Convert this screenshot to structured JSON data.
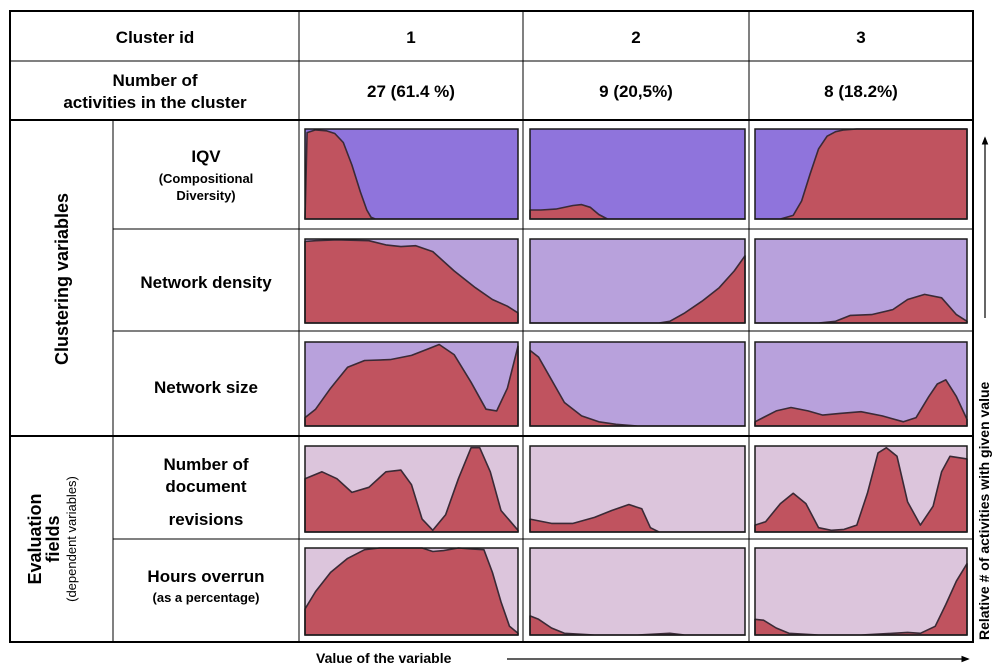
{
  "header": {
    "cluster_id_label": "Cluster id",
    "count_label_line1": "Number of",
    "count_label_line2": "activities in the cluster",
    "clusters": [
      "1",
      "2",
      "3"
    ],
    "counts": [
      "27 (61.4 %)",
      "9 (20,5%)",
      "8 (18.2%)"
    ]
  },
  "groups": {
    "clustering": "Clustering variables",
    "evaluation_line1": "Evaluation",
    "evaluation_line2": "fields",
    "evaluation_note": "(dependent variables)"
  },
  "row_labels": {
    "iqv_title": "IQV",
    "iqv_sub1": "(Compositional",
    "iqv_sub2": "Diversity)",
    "density": "Network density",
    "size": "Network size",
    "revisions_line1": "Number of",
    "revisions_line2": "document",
    "revisions_line3": "revisions",
    "overrun_title": "Hours overrun",
    "overrun_sub": "(as a percentage)"
  },
  "axes": {
    "x_caption": "Value of the variable",
    "y_caption": "Relative # of activities with given value"
  },
  "colors": {
    "fill": "#c0535f",
    "stroke": "#3a2a36",
    "bg_iqv": "#8f74dc",
    "bg_cluster": "#b8a1dc",
    "bg_eval": "#dcc5dc"
  },
  "chart_data": {
    "type": "area",
    "x_range": [
      0,
      1
    ],
    "y_range": [
      0,
      1
    ],
    "columns": [
      "1",
      "2",
      "3"
    ],
    "rows": [
      {
        "variable": "IQV",
        "series": [
          {
            "x": [
              0,
              0.01,
              0.05,
              0.1,
              0.14,
              0.18,
              0.22,
              0.26,
              0.29,
              0.31,
              0.33,
              1
            ],
            "y": [
              0,
              0.96,
              0.99,
              0.98,
              0.95,
              0.85,
              0.6,
              0.3,
              0.1,
              0.02,
              0,
              0
            ]
          },
          {
            "x": [
              0,
              0.05,
              0.12,
              0.2,
              0.24,
              0.28,
              0.32,
              0.36,
              1
            ],
            "y": [
              0.1,
              0.1,
              0.11,
              0.15,
              0.16,
              0.13,
              0.05,
              0,
              0
            ]
          },
          {
            "x": [
              0,
              0.12,
              0.18,
              0.22,
              0.26,
              0.3,
              0.34,
              0.38,
              0.42,
              0.48,
              0.6,
              0.8,
              1
            ],
            "y": [
              0,
              0,
              0.04,
              0.2,
              0.5,
              0.78,
              0.92,
              0.97,
              0.99,
              1,
              1,
              1,
              1
            ]
          }
        ]
      },
      {
        "variable": "Network density",
        "series": [
          {
            "x": [
              0,
              0.05,
              0.15,
              0.3,
              0.38,
              0.45,
              0.52,
              0.6,
              0.7,
              0.8,
              0.88,
              0.95,
              1
            ],
            "y": [
              0.97,
              0.98,
              0.99,
              0.98,
              0.93,
              0.91,
              0.92,
              0.85,
              0.62,
              0.42,
              0.28,
              0.2,
              0.12
            ]
          },
          {
            "x": [
              0,
              0.5,
              0.6,
              0.65,
              0.72,
              0.8,
              0.88,
              0.95,
              1
            ],
            "y": [
              0,
              0,
              0,
              0.02,
              0.12,
              0.26,
              0.42,
              0.62,
              0.8
            ]
          },
          {
            "x": [
              0,
              0.3,
              0.38,
              0.45,
              0.55,
              0.65,
              0.72,
              0.8,
              0.88,
              0.95,
              1
            ],
            "y": [
              0,
              0,
              0.02,
              0.09,
              0.1,
              0.16,
              0.28,
              0.34,
              0.3,
              0.1,
              0.02
            ]
          }
        ]
      },
      {
        "variable": "Network size",
        "series": [
          {
            "x": [
              0,
              0.05,
              0.12,
              0.2,
              0.28,
              0.4,
              0.5,
              0.58,
              0.63,
              0.7,
              0.78,
              0.85,
              0.9,
              0.95,
              1
            ],
            "y": [
              0.1,
              0.2,
              0.45,
              0.7,
              0.78,
              0.79,
              0.84,
              0.92,
              0.97,
              0.85,
              0.52,
              0.2,
              0.18,
              0.45,
              0.95
            ]
          },
          {
            "x": [
              0,
              0.04,
              0.1,
              0.16,
              0.24,
              0.32,
              0.4,
              0.5,
              1
            ],
            "y": [
              0.9,
              0.82,
              0.55,
              0.28,
              0.12,
              0.05,
              0.02,
              0,
              0
            ]
          },
          {
            "x": [
              0,
              0.1,
              0.17,
              0.25,
              0.32,
              0.4,
              0.5,
              0.6,
              0.7,
              0.76,
              0.82,
              0.86,
              0.9,
              0.95,
              1
            ],
            "y": [
              0.05,
              0.18,
              0.22,
              0.18,
              0.13,
              0.15,
              0.17,
              0.12,
              0.05,
              0.1,
              0.35,
              0.5,
              0.55,
              0.35,
              0.08
            ]
          }
        ]
      },
      {
        "variable": "Number of document revisions",
        "series": [
          {
            "x": [
              0,
              0.08,
              0.15,
              0.22,
              0.3,
              0.38,
              0.45,
              0.5,
              0.55,
              0.6,
              0.66,
              0.72,
              0.78,
              0.82,
              0.87,
              0.92,
              1
            ],
            "y": [
              0.62,
              0.7,
              0.62,
              0.46,
              0.52,
              0.7,
              0.72,
              0.55,
              0.15,
              0.02,
              0.2,
              0.62,
              0.98,
              0.98,
              0.7,
              0.25,
              0.02
            ]
          },
          {
            "x": [
              0,
              0.1,
              0.2,
              0.3,
              0.38,
              0.46,
              0.52,
              0.56,
              0.6,
              1
            ],
            "y": [
              0.15,
              0.1,
              0.1,
              0.17,
              0.25,
              0.32,
              0.27,
              0.05,
              0,
              0
            ]
          },
          {
            "x": [
              0,
              0.05,
              0.12,
              0.18,
              0.24,
              0.3,
              0.36,
              0.42,
              0.48,
              0.53,
              0.58,
              0.62,
              0.67,
              0.72,
              0.78,
              0.84,
              0.88,
              0.92,
              1
            ],
            "y": [
              0.08,
              0.12,
              0.33,
              0.45,
              0.33,
              0.05,
              0.02,
              0.03,
              0.08,
              0.45,
              0.92,
              0.98,
              0.88,
              0.35,
              0.08,
              0.3,
              0.7,
              0.88,
              0.85
            ]
          }
        ]
      },
      {
        "variable": "Hours overrun",
        "series": [
          {
            "x": [
              0,
              0.05,
              0.12,
              0.2,
              0.28,
              0.35,
              0.45,
              0.55,
              0.6,
              0.65,
              0.72,
              0.78,
              0.84,
              0.88,
              0.92,
              0.96,
              1
            ],
            "y": [
              0.3,
              0.5,
              0.72,
              0.88,
              0.98,
              1,
              1,
              1,
              0.96,
              0.97,
              1,
              0.99,
              0.98,
              0.72,
              0.38,
              0.1,
              0.02
            ]
          },
          {
            "x": [
              0,
              0.04,
              0.1,
              0.16,
              0.22,
              0.3,
              0.5,
              0.65,
              0.68,
              0.72,
              1
            ],
            "y": [
              0.22,
              0.18,
              0.08,
              0.02,
              0.01,
              0,
              0,
              0.02,
              0.01,
              0,
              0
            ]
          },
          {
            "x": [
              0,
              0.04,
              0.1,
              0.16,
              0.22,
              0.3,
              0.5,
              0.65,
              0.72,
              0.78,
              0.85,
              0.9,
              0.95,
              1
            ],
            "y": [
              0.18,
              0.17,
              0.08,
              0.02,
              0.01,
              0,
              0,
              0.02,
              0.03,
              0.02,
              0.1,
              0.35,
              0.62,
              0.82
            ]
          }
        ]
      }
    ]
  }
}
